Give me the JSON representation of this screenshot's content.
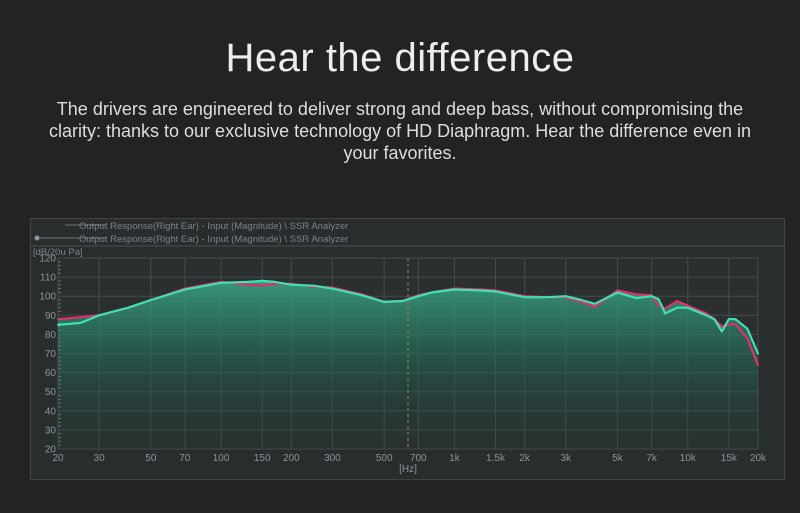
{
  "page": {
    "title": "Hear the difference",
    "description": "The drivers are engineered to deliver strong and deep bass, without compromising the clarity: thanks to our exclusive technology of HD Diaphragm. Hear the difference even in your favorites."
  },
  "colors": {
    "background": "#232323",
    "plot_bg": "#2b2f30",
    "series_red": "#e0306a",
    "series_teal": "#3fe0b4"
  },
  "chart_data": {
    "type": "line",
    "x_scale": "log",
    "xlim": [
      20,
      20000
    ],
    "ylim": [
      20,
      120
    ],
    "ylabel": "[dB/20u Pa]",
    "xlabel": "[Hz]",
    "x_ticks": [
      20,
      30,
      50,
      70,
      100,
      150,
      200,
      300,
      500,
      700,
      1000,
      1500,
      2000,
      3000,
      5000,
      7000,
      10000,
      15000,
      20000
    ],
    "x_tick_labels": [
      "20",
      "30",
      "50",
      "70",
      "100",
      "150",
      "200",
      "300",
      "500",
      "700",
      "1k",
      "1.5k",
      "2k",
      "3k",
      "5k",
      "7k",
      "10k",
      "15k",
      "20k"
    ],
    "y_ticks": [
      20,
      30,
      40,
      50,
      60,
      70,
      80,
      90,
      100,
      110,
      120
    ],
    "grid": true,
    "legend_position": "top-left",
    "series": [
      {
        "name": "Output Response(Right Ear) - Input (Magnitude) \\ SSR Analyzer",
        "color": "#e0306a",
        "x": [
          20,
          25,
          30,
          40,
          50,
          70,
          100,
          130,
          150,
          170,
          200,
          250,
          300,
          400,
          500,
          600,
          700,
          800,
          1000,
          1300,
          1500,
          2000,
          2500,
          3000,
          3500,
          4000,
          5000,
          6000,
          7000,
          7500,
          8000,
          9000,
          10000,
          12000,
          13000,
          14000,
          15000,
          16000,
          18000,
          20000
        ],
        "values": [
          88,
          89,
          90,
          94,
          98,
          104,
          107.5,
          106,
          105.5,
          106.5,
          106.5,
          105,
          104.5,
          101,
          97,
          97.5,
          100.5,
          102,
          104,
          103.5,
          103,
          100,
          99.5,
          99.5,
          97,
          94.5,
          103,
          101,
          100.5,
          95,
          93.5,
          97.5,
          95,
          91,
          88,
          84,
          85,
          85.5,
          78,
          64
        ]
      },
      {
        "name": "Output Response(Right Ear) - Input (Magnitude) \\ SSR Analyzer",
        "color": "#3fe0b4",
        "x": [
          20,
          25,
          30,
          40,
          50,
          70,
          100,
          130,
          150,
          170,
          200,
          250,
          300,
          400,
          500,
          600,
          700,
          800,
          1000,
          1300,
          1500,
          2000,
          2500,
          3000,
          3500,
          4000,
          5000,
          6000,
          7000,
          7500,
          8000,
          9000,
          10000,
          12000,
          13000,
          14000,
          15000,
          16000,
          18000,
          20000
        ],
        "values": [
          85,
          86,
          90,
          94,
          98,
          103.5,
          107,
          107.5,
          108,
          107.5,
          106,
          105.5,
          104,
          100.5,
          97,
          97.5,
          100,
          102,
          103.5,
          103,
          102.5,
          99.5,
          99.5,
          100,
          98,
          96,
          102,
          99,
          100,
          98.5,
          91,
          94,
          94,
          90,
          88,
          81.5,
          88,
          88,
          83,
          70
        ]
      }
    ]
  }
}
